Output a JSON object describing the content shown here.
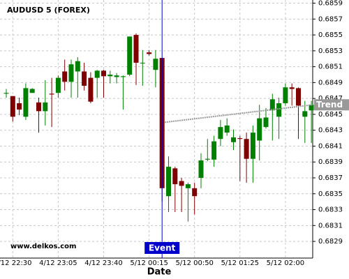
{
  "chart_data": {
    "type": "candlestick",
    "title": "AUDUSD 5 (FOREX)",
    "watermark": "www.delkos.com",
    "x_label": "Date",
    "categories": [
      null,
      "4/12 22:30",
      null,
      null,
      null,
      null,
      null,
      null,
      "4/12 23:05",
      null,
      null,
      null,
      null,
      null,
      null,
      "4/12 23:40",
      null,
      null,
      null,
      null,
      null,
      null,
      "5/12 00:15",
      null,
      null,
      null,
      null,
      null,
      null,
      "5/12 00:50",
      null,
      null,
      null,
      null,
      null,
      null,
      "5/12 01:25",
      null,
      null,
      null,
      null,
      null,
      null,
      "5/12 02:00",
      null,
      null,
      null,
      null
    ],
    "open": [
      0.68476,
      0.68473,
      0.68464,
      0.68447,
      0.68477,
      0.68465,
      0.68454,
      0.68476,
      0.68477,
      0.68504,
      0.68491,
      0.68504,
      0.68504,
      0.68496,
      0.68496,
      0.68505,
      0.68498,
      0.68497,
      0.68497,
      0.685,
      0.6855,
      0.68515,
      0.68528,
      0.68506,
      0.68521,
      0.68347,
      0.68382,
      0.68366,
      0.68357,
      0.68357,
      0.6837,
      0.68393,
      0.68393,
      0.68419,
      0.68427,
      0.68415,
      0.6842,
      0.68419,
      0.68394,
      0.68417,
      0.68434,
      0.68455,
      0.68447,
      0.68464,
      0.68484,
      0.68483,
      0.68447,
      0.68455
    ],
    "high": [
      0.68482,
      0.68473,
      0.68471,
      0.68489,
      0.68483,
      0.68471,
      0.68493,
      0.68496,
      0.68499,
      0.68519,
      0.68519,
      0.68522,
      0.68515,
      0.68503,
      0.68506,
      0.68506,
      0.68505,
      0.68502,
      0.68499,
      0.68548,
      0.68552,
      0.68531,
      0.68531,
      0.68531,
      0.68521,
      0.68397,
      0.68384,
      0.6837,
      0.68364,
      0.68364,
      0.68401,
      0.68419,
      0.68423,
      0.68443,
      0.68445,
      0.68431,
      0.68423,
      0.68427,
      0.68436,
      0.68462,
      0.68458,
      0.68476,
      0.68471,
      0.68489,
      0.68489,
      0.68484,
      0.68467,
      0.68467
    ],
    "low": [
      0.68471,
      0.68441,
      0.68449,
      0.68443,
      0.68477,
      0.68427,
      0.68436,
      0.68434,
      0.68471,
      0.6848,
      0.68471,
      0.68471,
      0.6848,
      0.68464,
      0.68471,
      0.68471,
      0.68489,
      0.68489,
      0.68456,
      0.68498,
      0.68487,
      0.68486,
      0.68524,
      0.68484,
      0.6834,
      0.68327,
      0.68327,
      0.68327,
      0.68315,
      0.68324,
      0.68357,
      0.68391,
      0.68384,
      0.6841,
      0.68423,
      0.68405,
      0.68366,
      0.68364,
      0.68364,
      0.68392,
      0.68432,
      0.68417,
      0.68419,
      0.68461,
      0.68461,
      0.68419,
      0.68414,
      0.68414
    ],
    "close": [
      0.68477,
      0.68447,
      0.68456,
      0.68483,
      0.68482,
      0.68454,
      0.68465,
      0.68475,
      0.68496,
      0.68491,
      0.68513,
      0.68517,
      0.68486,
      0.68466,
      0.68505,
      0.68498,
      0.685,
      0.68499,
      0.68498,
      0.68548,
      0.68515,
      0.68515,
      0.68526,
      0.6852,
      0.68357,
      0.68384,
      0.68362,
      0.6836,
      0.68362,
      0.68347,
      0.68392,
      0.68394,
      0.68416,
      0.68434,
      0.68436,
      0.68421,
      0.68419,
      0.68394,
      0.68427,
      0.68445,
      0.68446,
      0.68469,
      0.68464,
      0.68484,
      0.68482,
      0.68461,
      0.68454,
      0.68462
    ],
    "up_color": "#008000",
    "down_color": "#800000",
    "event": {
      "label": "Event",
      "index": 24,
      "color": "#0000cc"
    },
    "trend": {
      "name": "Trend",
      "values": [
        0.6844,
        0.68462
      ],
      "color": "#999999"
    },
    "ylim": [
      0.68269,
      0.68594
    ],
    "yticks": [
      0.6829,
      0.6831,
      0.6833,
      0.6835,
      0.6837,
      0.6839,
      0.6841,
      0.6843,
      0.6845,
      0.6847,
      0.6849,
      0.6851,
      0.6853,
      0.6855,
      0.6857,
      0.6859
    ],
    "grid": true
  }
}
